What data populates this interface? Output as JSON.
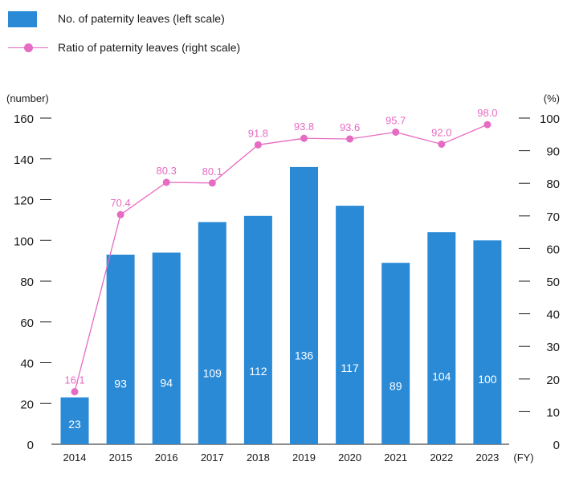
{
  "legend": {
    "bar_label": "No. of paternity leaves (left scale)",
    "line_label": "Ratio of paternity leaves (right scale)"
  },
  "colors": {
    "bar": "#2a8ad6",
    "line": "#e66bc2",
    "bar_text": "#ffffff",
    "axis": "#1a1a1a"
  },
  "chart_data": {
    "type": "bar",
    "categories": [
      "2014",
      "2015",
      "2016",
      "2017",
      "2018",
      "2019",
      "2020",
      "2021",
      "2022",
      "2023"
    ],
    "series": [
      {
        "name": "No. of paternity leaves (left scale)",
        "type": "bar",
        "axis": "left",
        "values": [
          23,
          93,
          94,
          109,
          112,
          136,
          117,
          89,
          104,
          100
        ]
      },
      {
        "name": "Ratio of paternity leaves (right scale)",
        "type": "line",
        "axis": "right",
        "values": [
          16.1,
          70.4,
          80.3,
          80.1,
          91.8,
          93.8,
          93.6,
          95.7,
          92.0,
          98.0
        ],
        "labels": [
          "16.1",
          "70.4",
          "80.3",
          "80.1",
          "91.8",
          "93.8",
          "93.6",
          "95.7",
          "92.0",
          "98.0"
        ]
      }
    ],
    "left_axis": {
      "label": "(number)",
      "ylim": [
        0,
        160
      ],
      "ticks": [
        0,
        20,
        40,
        60,
        80,
        100,
        120,
        140,
        160
      ]
    },
    "right_axis": {
      "label": "(%)",
      "ylim": [
        0,
        100
      ],
      "ticks": [
        0,
        10,
        20,
        30,
        40,
        50,
        60,
        70,
        80,
        90,
        100
      ]
    },
    "x_unit": "(FY)",
    "legend_position": "top-left",
    "grid": false
  }
}
